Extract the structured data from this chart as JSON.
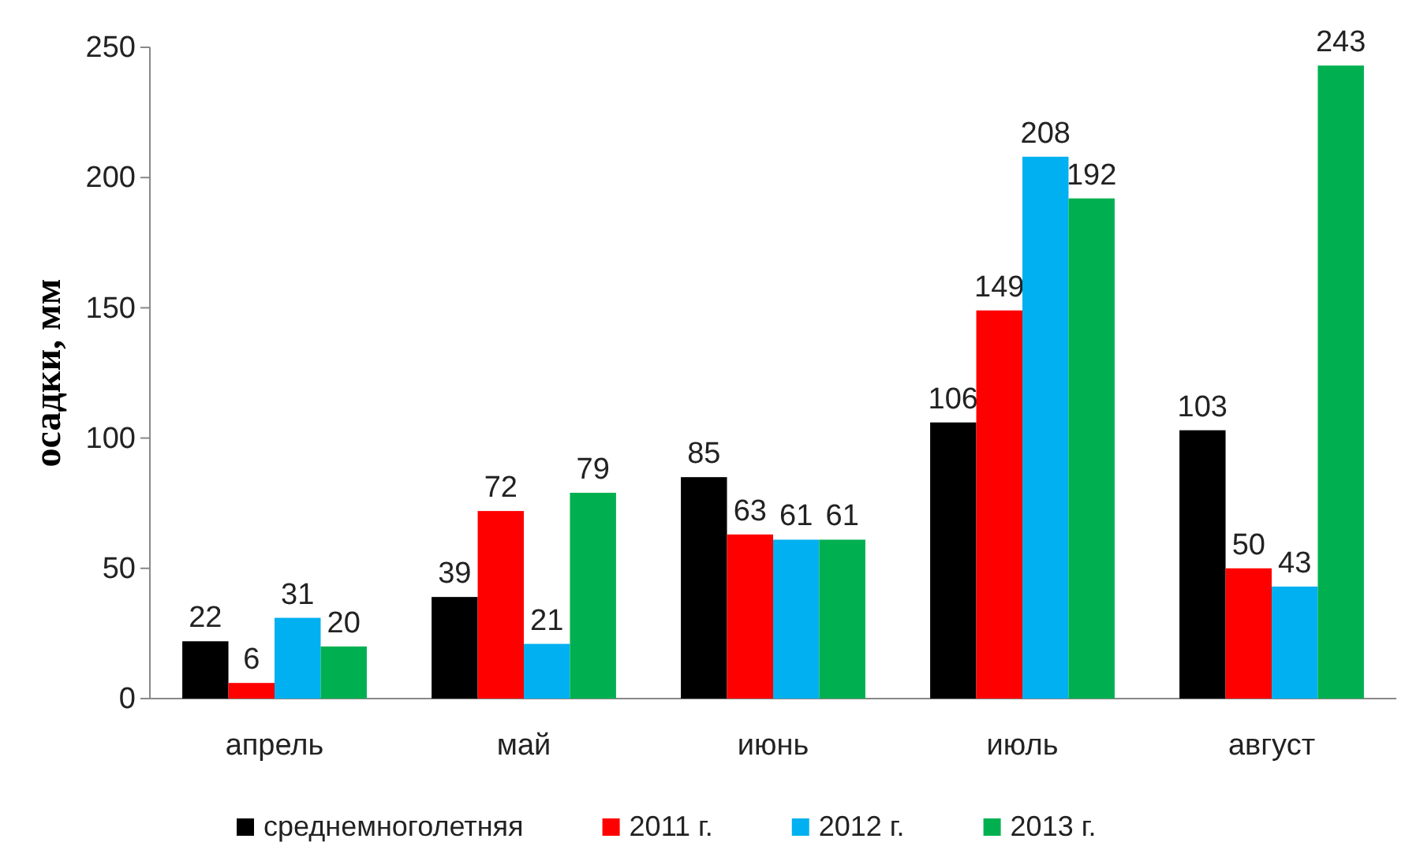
{
  "chart_data": {
    "type": "bar",
    "ylabel": "осадки, мм",
    "categories": [
      "апрель",
      "май",
      "июнь",
      "июль",
      "август"
    ],
    "series": [
      {
        "name": "среднемноголетняя",
        "color": "#000000",
        "values": [
          22,
          39,
          85,
          106,
          103
        ]
      },
      {
        "name": "2011 г.",
        "color": "#ff0000",
        "values": [
          6,
          72,
          63,
          149,
          50
        ]
      },
      {
        "name": "2012 г.",
        "color": "#00b0f0",
        "values": [
          31,
          21,
          61,
          208,
          43
        ]
      },
      {
        "name": "2013 г.",
        "color": "#00b050",
        "values": [
          20,
          79,
          61,
          192,
          243
        ]
      }
    ],
    "ylim": [
      0,
      250
    ],
    "yticks": [
      0,
      50,
      100,
      150,
      200,
      250
    ],
    "grid": false,
    "legend": "bottom",
    "data_labels": true
  }
}
